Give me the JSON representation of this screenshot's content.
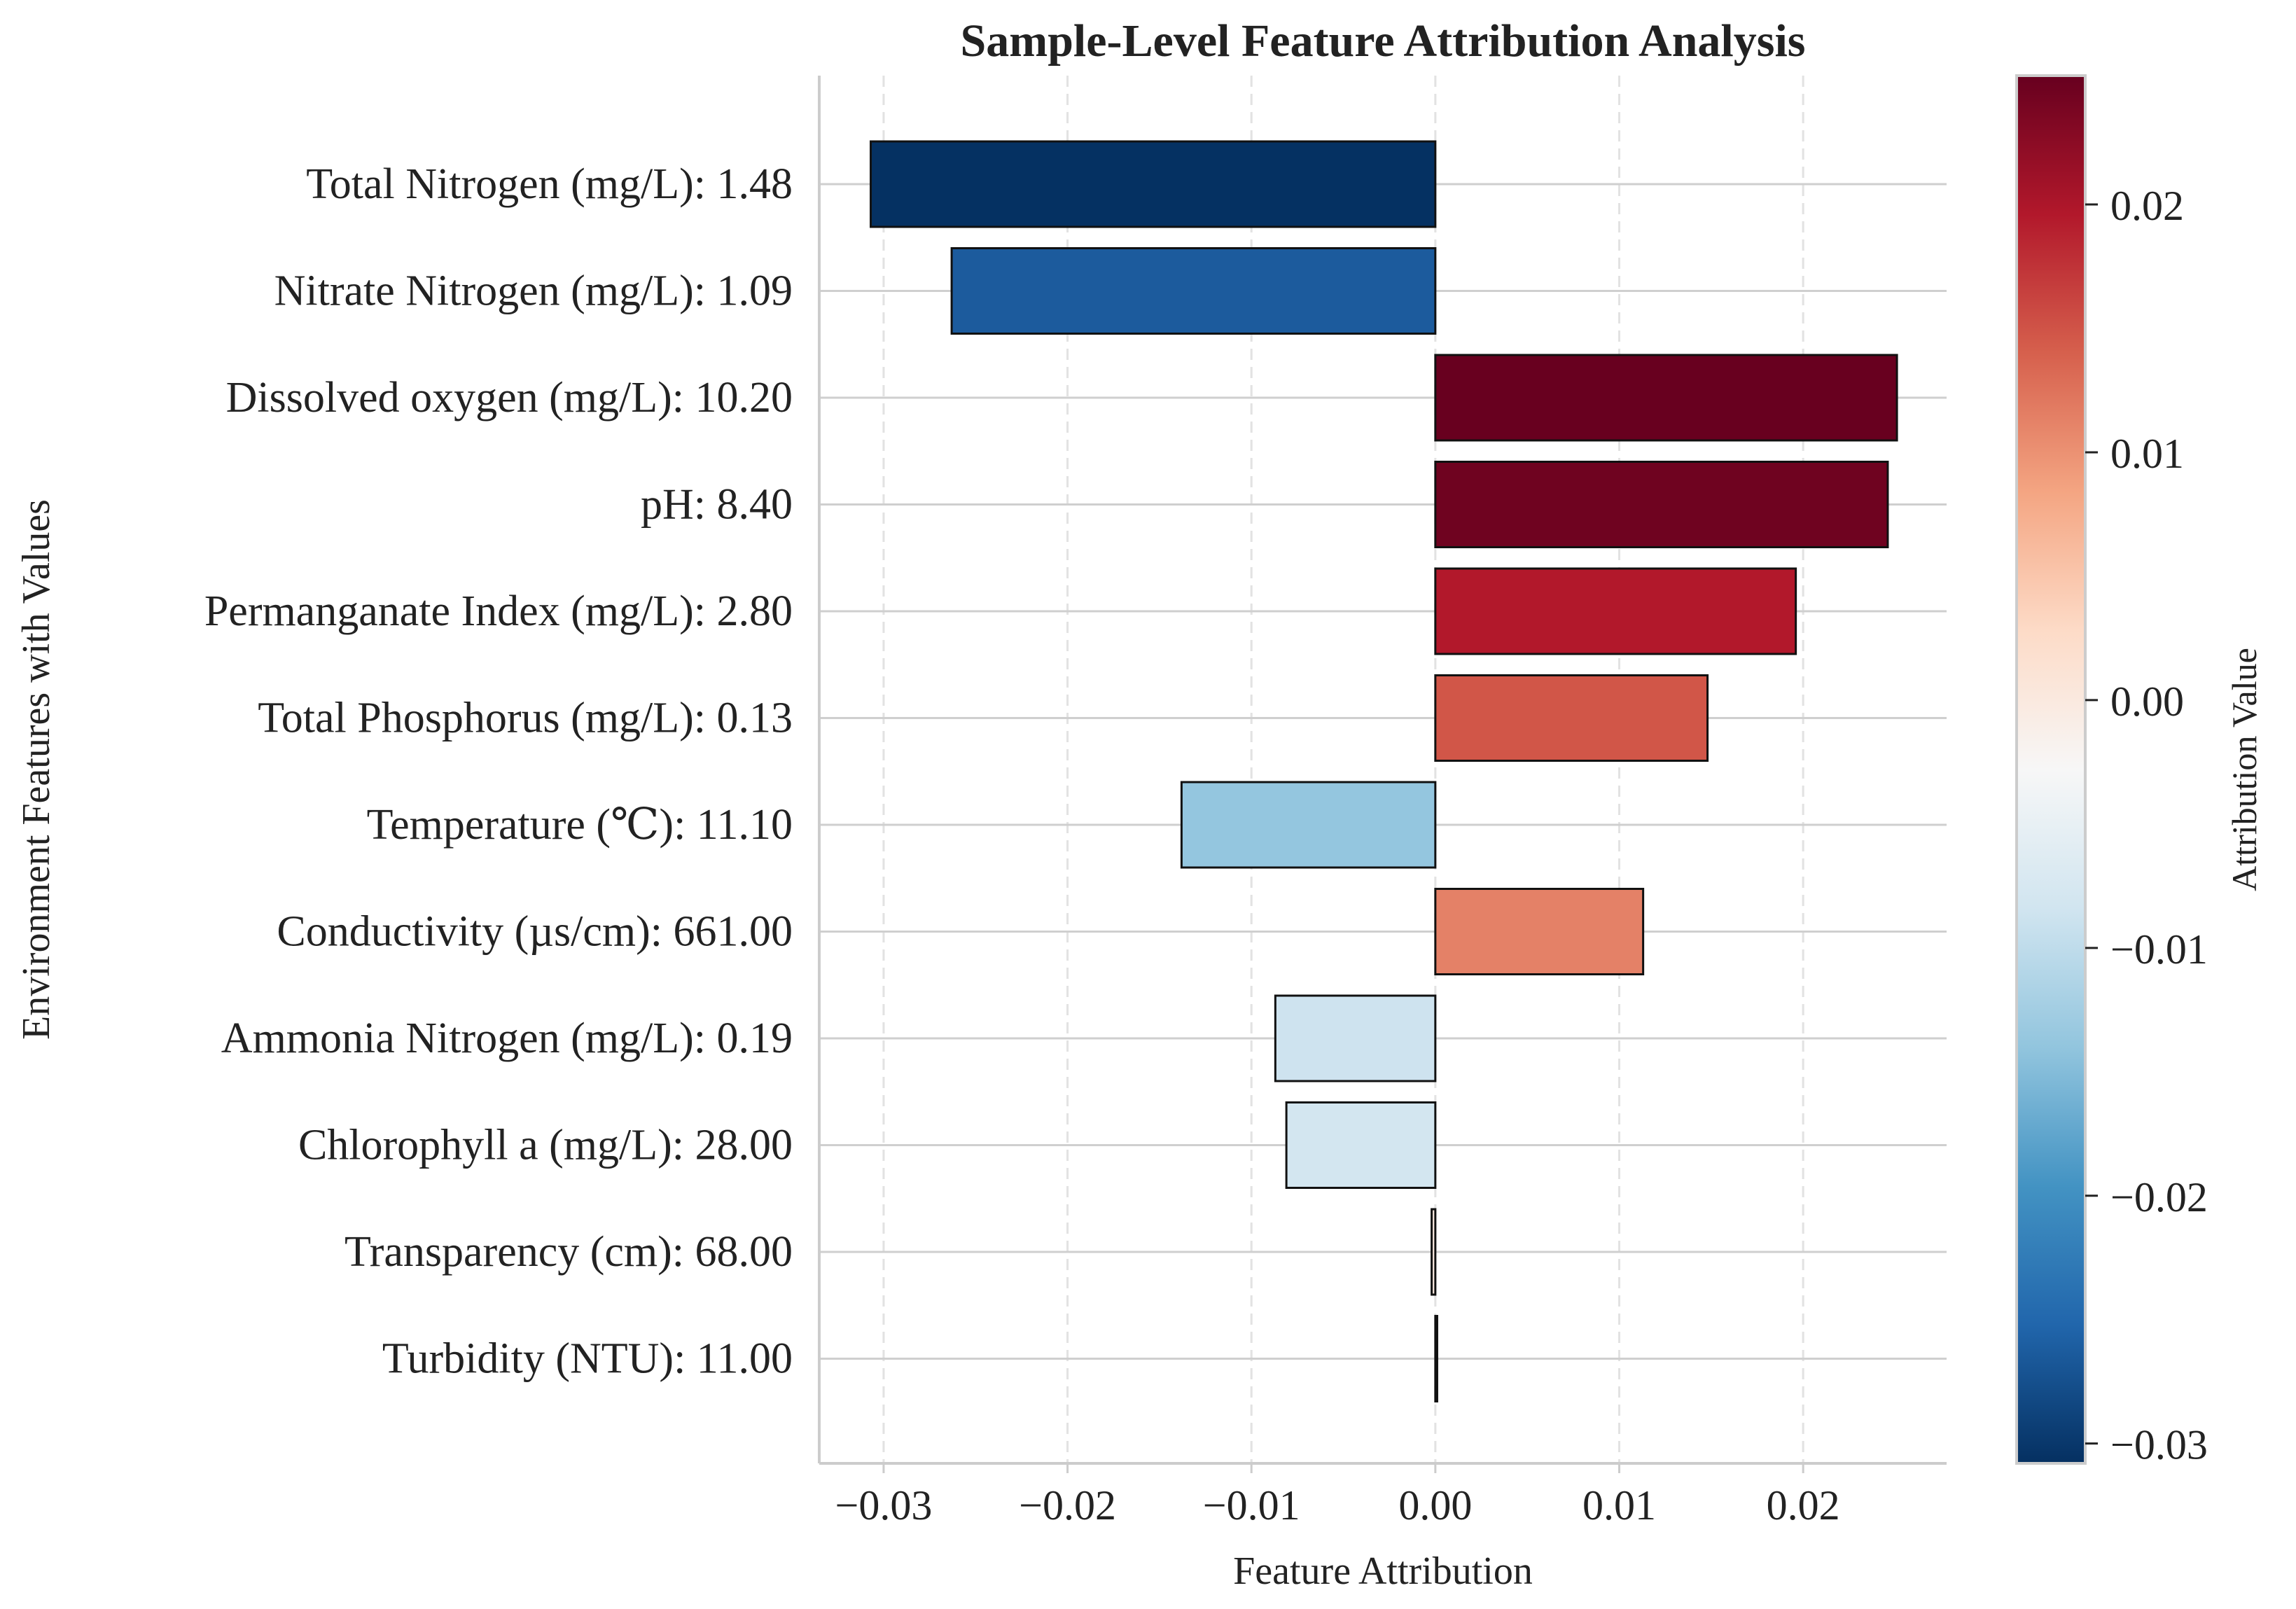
{
  "chart_data": {
    "type": "bar",
    "orientation": "horizontal",
    "title": "Sample-Level Feature Attribution Analysis",
    "xlabel": "Feature Attribution",
    "ylabel": "Environment Features with Values",
    "xlim": [
      -0.0335,
      0.0278
    ],
    "xticks": [
      -0.03,
      -0.02,
      -0.01,
      0.0,
      0.01,
      0.02
    ],
    "xtick_labels": [
      "−0.03",
      "−0.02",
      "−0.01",
      "0.00",
      "0.01",
      "0.02"
    ],
    "grid": true,
    "categories": [
      "Total Nitrogen (mg/L): 1.48",
      "Nitrate Nitrogen (mg/L): 1.09",
      "Dissolved oxygen (mg/L): 10.20",
      "pH: 8.40",
      "Permanganate Index (mg/L): 2.80",
      "Total Phosphorus (mg/L): 0.13",
      "Temperature (℃): 11.10",
      "Conductivity (µs/cm): 661.00",
      "Ammonia Nitrogen (mg/L): 0.19",
      "Chlorophyll a (mg/L): 28.00",
      "Transparency (cm): 68.00",
      "Turbidity (NTU): 11.00"
    ],
    "values": [
      -0.0307,
      -0.0263,
      0.0251,
      0.0246,
      0.0196,
      0.0148,
      -0.0138,
      0.0113,
      -0.0087,
      -0.0081,
      -0.0002,
      0.0001
    ],
    "colorbar": {
      "label": "Attribution Value",
      "range": [
        -0.0308,
        0.0252
      ],
      "ticks": [
        0.02,
        0.01,
        0.0,
        -0.01,
        -0.02,
        -0.03
      ],
      "tick_labels": [
        "0.02",
        "0.01",
        "0.00",
        "−0.01",
        "−0.02",
        "−0.03"
      ],
      "colormap": "RdBu_r",
      "stops": [
        "#053061",
        "#2166ac",
        "#4393c3",
        "#92c5de",
        "#d1e5f0",
        "#f7f7f7",
        "#fddbc7",
        "#f4a582",
        "#d6604d",
        "#b2182b",
        "#67001f"
      ]
    }
  }
}
